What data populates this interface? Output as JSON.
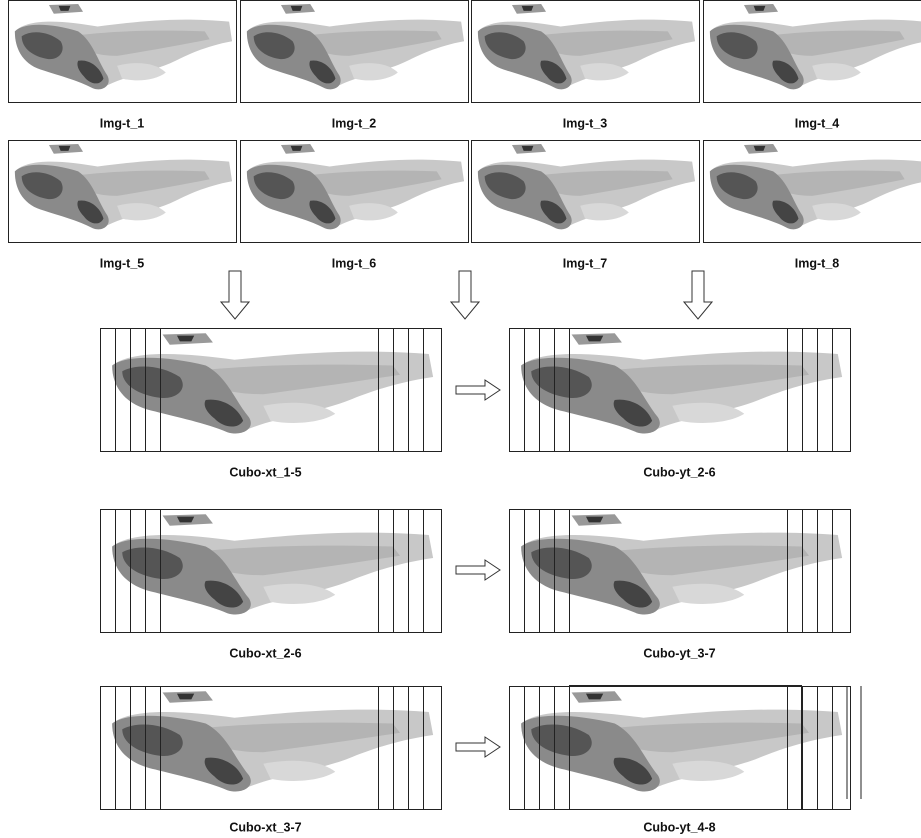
{
  "images": [
    "Img-t_1",
    "Img-t_2",
    "Img-t_3",
    "Img-t_4",
    "Img-t_5",
    "Img-t_6",
    "Img-t_7",
    "Img-t_8"
  ],
  "cubes": [
    [
      "Cubo-xt_1-5",
      "Cubo-yt_2-6"
    ],
    [
      "Cubo-xt_2-6",
      "Cubo-yt_3-7"
    ],
    [
      "Cubo-xt_3-7",
      "Cubo-yt_4-8"
    ]
  ]
}
